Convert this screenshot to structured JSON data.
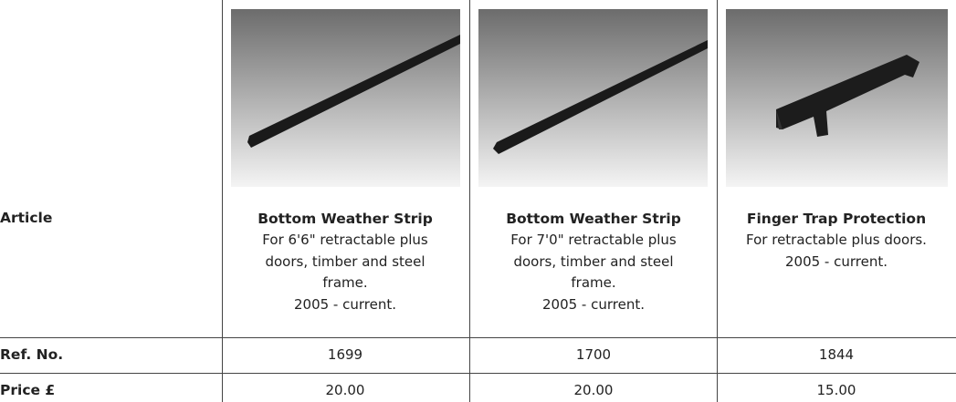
{
  "table": {
    "rows": [
      {
        "label": "Article",
        "cells": [
          {
            "name": "Bottom Weather Strip",
            "description": [
              "For 6'6\" retractable plus",
              "doors, timber and steel",
              "frame.",
              "2005 - current."
            ]
          },
          {
            "name": "Bottom Weather Strip",
            "description": [
              "For 7'0\" retractable plus",
              "doors, timber and steel",
              "frame.",
              "2005 - current."
            ]
          },
          {
            "name": "Finger Trap Protection",
            "description": [
              "For retractable plus doors.",
              "2005 - current."
            ]
          }
        ]
      },
      {
        "label": "Ref. No.",
        "cells": [
          "1699",
          "1700",
          "1844"
        ]
      },
      {
        "label": "Price £",
        "cells": [
          "20.00",
          "20.00",
          "15.00"
        ]
      }
    ]
  }
}
